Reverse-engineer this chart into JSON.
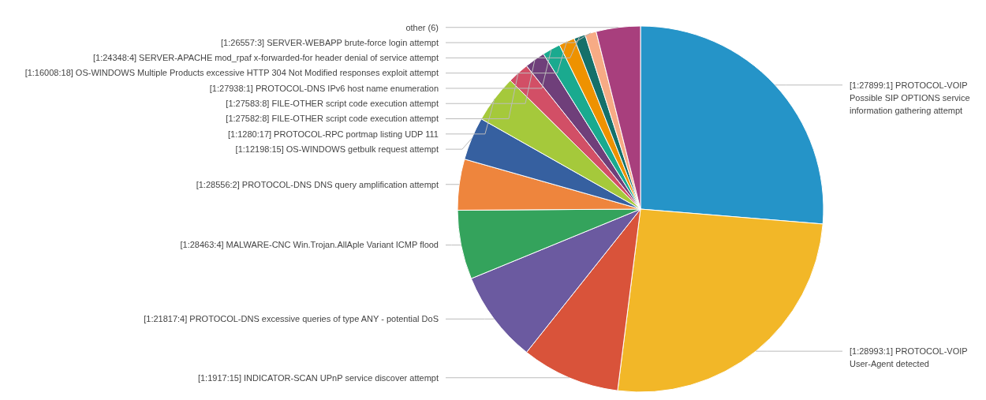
{
  "chart_data": {
    "type": "pie",
    "categories": [
      "[1:27899:1] PROTOCOL-VOIP Possible SIP OPTIONS service information gathering attempt",
      "[1:28993:1] PROTOCOL-VOIP User-Agent detected",
      "[1:1917:15] INDICATOR-SCAN UPnP service discover attempt",
      "[1:21817:4] PROTOCOL-DNS excessive queries of type ANY - potential DoS",
      "[1:28463:4] MALWARE-CNC Win.Trojan.AllAple Variant ICMP flood",
      "[1:28556:2] PROTOCOL-DNS DNS query amplification attempt",
      "[1:12198:15] OS-WINDOWS getbulk request attempt",
      "[1:1280:17] PROTOCOL-RPC portmap listing UDP 111",
      "[1:27582:8] FILE-OTHER script code execution attempt",
      "[1:27583:8] FILE-OTHER script code execution attempt",
      "[1:27938:1] PROTOCOL-DNS IPv6 host name enumeration",
      "[1:16008:18] OS-WINDOWS Multiple Products excessive HTTP 304 Not Modified responses exploit attempt",
      "[1:24348:4] SERVER-APACHE mod_rpaf x-forwarded-for header denial of service attempt",
      "[1:26557:3] SERVER-WEBAPP brute-force login attempt",
      "other (6)"
    ],
    "values": [
      26.3,
      25.7,
      8.7,
      8.1,
      6.1,
      4.5,
      3.8,
      4.2,
      1.9,
      1.8,
      1.6,
      1.4,
      1.0,
      1.0,
      3.9
    ],
    "colors": [
      "#2594c8",
      "#f2b728",
      "#d9533a",
      "#6b5aa0",
      "#34a35c",
      "#ee853d",
      "#3660a0",
      "#a5c93b",
      "#d24f66",
      "#6f3f7a",
      "#1aaa8f",
      "#ee9200",
      "#15706a",
      "#f7ab85",
      "#a83f7d"
    ]
  }
}
